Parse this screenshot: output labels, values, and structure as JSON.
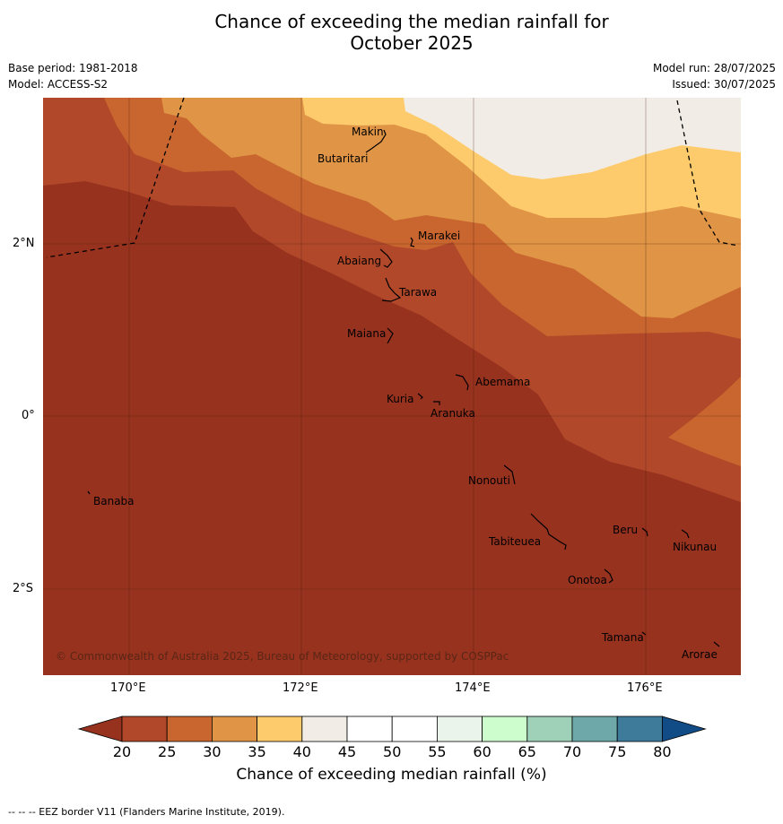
{
  "title_line1": "Chance of exceeding the median rainfall for",
  "title_line2": "October 2025",
  "meta": {
    "base_period": "Base period: 1981-2018",
    "model": "Model: ACCESS-S2",
    "model_run": "Model run: 28/07/2025",
    "issued": "Issued: 30/07/2025"
  },
  "copyright": "© Commonwealth of Australia 2025, Bureau of Meteorology, supported by COSPPac",
  "axes": {
    "lon_ticks": [
      "170°E",
      "172°E",
      "174°E",
      "176°E"
    ],
    "lat_ticks": [
      "2°N",
      "0°",
      "2°S"
    ]
  },
  "places": [
    {
      "name": "Makin"
    },
    {
      "name": "Butaritari"
    },
    {
      "name": "Marakei"
    },
    {
      "name": "Abaiang"
    },
    {
      "name": "Tarawa"
    },
    {
      "name": "Maiana"
    },
    {
      "name": "Abemama"
    },
    {
      "name": "Kuria"
    },
    {
      "name": "Aranuka"
    },
    {
      "name": "Nonouti"
    },
    {
      "name": "Banaba"
    },
    {
      "name": "Beru"
    },
    {
      "name": "Nikunau"
    },
    {
      "name": "Tabiteuea"
    },
    {
      "name": "Onotoa"
    },
    {
      "name": "Tamana"
    },
    {
      "name": "Arorae"
    }
  ],
  "colorbar": {
    "ticks": [
      "20",
      "25",
      "30",
      "35",
      "40",
      "45",
      "50",
      "55",
      "60",
      "65",
      "70",
      "75",
      "80"
    ],
    "colors": [
      "#b1482a",
      "#c9662f",
      "#e09446",
      "#fdcb6b",
      "#f1ede6",
      "#ffffff",
      "#ffffff",
      "#ebf4ea",
      "#cdfdcd",
      "#9fd1b9",
      "#6ea8a8",
      "#3e7a99",
      "#124c87"
    ],
    "below_color": "#97321f",
    "label": "Chance of exceeding median rainfall (%)"
  },
  "footer": "--  --  -- EEZ border V11 (Flanders Marine Institute, 2019)."
}
